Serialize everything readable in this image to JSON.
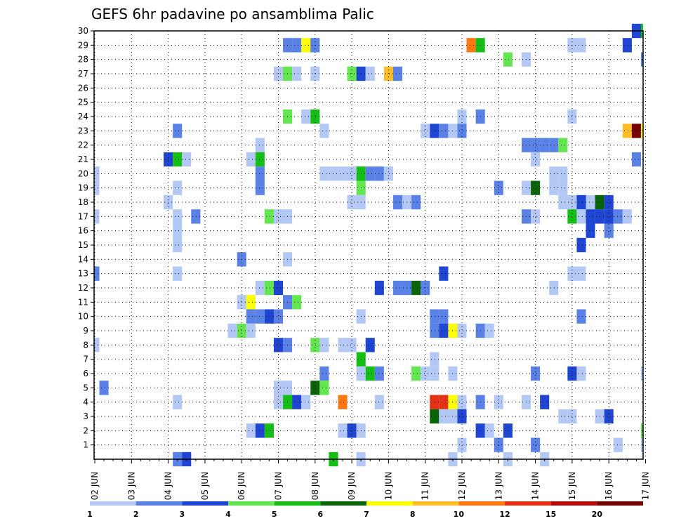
{
  "chart_data": {
    "type": "heatmap",
    "title": "GEFS 6hr padavine po ansamblima Palic",
    "x_tick_labels": [
      "02 JUN",
      "03 JUN",
      "04 JUN",
      "05 JUN",
      "06 JUN",
      "07 JUN",
      "08 JUN",
      "09 JUN",
      "10 JUN",
      "11 JUN",
      "12 JUN",
      "13 JUN",
      "14 JUN",
      "15 JUN",
      "16 JUN",
      "17 JUN"
    ],
    "y_tick_labels": [
      "1",
      "2",
      "3",
      "4",
      "5",
      "6",
      "7",
      "8",
      "9",
      "10",
      "11",
      "12",
      "13",
      "14",
      "15",
      "16",
      "17",
      "18",
      "19",
      "20",
      "21",
      "22",
      "23",
      "24",
      "25",
      "26",
      "27",
      "28",
      "29",
      "30"
    ],
    "colorbar": {
      "labels": [
        "1",
        "2",
        "3",
        "4",
        "5",
        "6",
        "7",
        "8",
        "10",
        "12",
        "15",
        "20"
      ],
      "colors": [
        "#b4c8f5",
        "#5a82e6",
        "#1e46d2",
        "#64e650",
        "#14be14",
        "#0a640a",
        "#ffff00",
        "#ffbe28",
        "#ff7814",
        "#e63214",
        "#b40a0a",
        "#780000"
      ]
    },
    "grid": "dotted",
    "cell_steps_per_day": 4,
    "cells": [
      [
        30,
        59,
        2
      ],
      [
        30,
        60,
        4
      ],
      [
        29,
        21,
        1
      ],
      [
        29,
        22,
        1
      ],
      [
        29,
        23,
        6
      ],
      [
        29,
        24,
        1
      ],
      [
        29,
        41,
        8
      ],
      [
        29,
        42,
        4
      ],
      [
        29,
        52,
        0
      ],
      [
        29,
        53,
        0
      ],
      [
        29,
        58,
        2
      ],
      [
        28,
        45,
        3
      ],
      [
        28,
        47,
        0
      ],
      [
        28,
        60,
        1
      ],
      [
        27,
        20,
        0
      ],
      [
        27,
        21,
        3
      ],
      [
        27,
        22,
        0
      ],
      [
        27,
        24,
        0
      ],
      [
        27,
        28,
        3
      ],
      [
        27,
        29,
        2
      ],
      [
        27,
        30,
        0
      ],
      [
        27,
        32,
        7
      ],
      [
        27,
        33,
        1
      ],
      [
        24,
        21,
        3
      ],
      [
        24,
        23,
        0
      ],
      [
        24,
        24,
        4
      ],
      [
        24,
        40,
        0
      ],
      [
        24,
        42,
        1
      ],
      [
        24,
        52,
        0
      ],
      [
        23,
        9,
        1
      ],
      [
        23,
        25,
        0
      ],
      [
        23,
        36,
        0
      ],
      [
        23,
        37,
        2
      ],
      [
        23,
        38,
        1
      ],
      [
        23,
        39,
        0
      ],
      [
        23,
        40,
        1
      ],
      [
        23,
        58,
        7
      ],
      [
        23,
        59,
        11
      ],
      [
        23,
        60,
        6
      ],
      [
        22,
        18,
        0
      ],
      [
        22,
        47,
        1
      ],
      [
        22,
        48,
        1
      ],
      [
        22,
        49,
        1
      ],
      [
        22,
        50,
        1
      ],
      [
        22,
        51,
        3
      ],
      [
        21,
        8,
        2
      ],
      [
        21,
        9,
        4
      ],
      [
        21,
        10,
        0
      ],
      [
        21,
        17,
        0
      ],
      [
        21,
        18,
        4
      ],
      [
        21,
        48,
        0
      ],
      [
        21,
        59,
        1
      ],
      [
        20,
        0,
        0
      ],
      [
        20,
        18,
        1
      ],
      [
        20,
        25,
        0
      ],
      [
        20,
        26,
        0
      ],
      [
        20,
        27,
        0
      ],
      [
        20,
        28,
        0
      ],
      [
        20,
        29,
        4
      ],
      [
        20,
        30,
        1
      ],
      [
        20,
        31,
        1
      ],
      [
        20,
        32,
        0
      ],
      [
        20,
        50,
        0
      ],
      [
        20,
        51,
        0
      ],
      [
        19,
        0,
        0
      ],
      [
        19,
        9,
        0
      ],
      [
        19,
        18,
        1
      ],
      [
        19,
        29,
        3
      ],
      [
        19,
        44,
        1
      ],
      [
        19,
        47,
        0
      ],
      [
        19,
        48,
        5
      ],
      [
        19,
        50,
        0
      ],
      [
        19,
        51,
        0
      ],
      [
        18,
        8,
        0
      ],
      [
        18,
        28,
        0
      ],
      [
        18,
        29,
        0
      ],
      [
        18,
        33,
        1
      ],
      [
        18,
        34,
        0
      ],
      [
        18,
        35,
        1
      ],
      [
        18,
        51,
        0
      ],
      [
        18,
        52,
        0
      ],
      [
        18,
        53,
        2
      ],
      [
        18,
        54,
        0
      ],
      [
        18,
        55,
        5
      ],
      [
        18,
        56,
        2
      ],
      [
        17,
        0,
        0
      ],
      [
        17,
        9,
        0
      ],
      [
        17,
        11,
        1
      ],
      [
        17,
        19,
        3
      ],
      [
        17,
        20,
        0
      ],
      [
        17,
        21,
        0
      ],
      [
        17,
        47,
        1
      ],
      [
        17,
        48,
        0
      ],
      [
        17,
        52,
        4
      ],
      [
        17,
        53,
        0
      ],
      [
        17,
        54,
        2
      ],
      [
        17,
        55,
        2
      ],
      [
        17,
        56,
        2
      ],
      [
        17,
        57,
        1
      ],
      [
        17,
        58,
        0
      ],
      [
        16,
        9,
        0
      ],
      [
        16,
        54,
        2
      ],
      [
        16,
        56,
        1
      ],
      [
        15,
        9,
        0
      ],
      [
        15,
        53,
        2
      ],
      [
        14,
        16,
        1
      ],
      [
        14,
        21,
        0
      ],
      [
        13,
        0,
        1
      ],
      [
        13,
        9,
        0
      ],
      [
        13,
        38,
        2
      ],
      [
        13,
        52,
        0
      ],
      [
        13,
        53,
        0
      ],
      [
        12,
        18,
        0
      ],
      [
        12,
        19,
        3
      ],
      [
        12,
        20,
        2
      ],
      [
        12,
        31,
        2
      ],
      [
        12,
        33,
        1
      ],
      [
        12,
        34,
        1
      ],
      [
        12,
        35,
        5
      ],
      [
        12,
        36,
        1
      ],
      [
        12,
        50,
        0
      ],
      [
        11,
        16,
        0
      ],
      [
        11,
        17,
        6
      ],
      [
        11,
        21,
        1
      ],
      [
        11,
        22,
        3
      ],
      [
        10,
        17,
        1
      ],
      [
        10,
        18,
        1
      ],
      [
        10,
        19,
        2
      ],
      [
        10,
        20,
        1
      ],
      [
        10,
        29,
        0
      ],
      [
        10,
        37,
        1
      ],
      [
        10,
        38,
        1
      ],
      [
        10,
        53,
        1
      ],
      [
        9,
        15,
        0
      ],
      [
        9,
        16,
        3
      ],
      [
        9,
        17,
        0
      ],
      [
        9,
        37,
        1
      ],
      [
        9,
        38,
        2
      ],
      [
        9,
        39,
        6
      ],
      [
        9,
        40,
        0
      ],
      [
        9,
        42,
        1
      ],
      [
        9,
        43,
        0
      ],
      [
        8,
        0,
        0
      ],
      [
        8,
        20,
        2
      ],
      [
        8,
        21,
        1
      ],
      [
        8,
        24,
        3
      ],
      [
        8,
        25,
        0
      ],
      [
        8,
        27,
        0
      ],
      [
        8,
        28,
        0
      ],
      [
        8,
        30,
        2
      ],
      [
        7,
        29,
        4
      ],
      [
        7,
        37,
        0
      ],
      [
        6,
        25,
        1
      ],
      [
        6,
        29,
        0
      ],
      [
        6,
        30,
        4
      ],
      [
        6,
        31,
        1
      ],
      [
        6,
        35,
        3
      ],
      [
        6,
        36,
        0
      ],
      [
        6,
        37,
        0
      ],
      [
        6,
        39,
        0
      ],
      [
        6,
        48,
        1
      ],
      [
        6,
        52,
        2
      ],
      [
        6,
        53,
        0
      ],
      [
        6,
        60,
        0
      ],
      [
        5,
        1,
        1
      ],
      [
        5,
        20,
        0
      ],
      [
        5,
        21,
        0
      ],
      [
        5,
        24,
        5
      ],
      [
        5,
        25,
        3
      ],
      [
        4,
        9,
        0
      ],
      [
        4,
        20,
        0
      ],
      [
        4,
        21,
        4
      ],
      [
        4,
        22,
        2
      ],
      [
        4,
        23,
        0
      ],
      [
        4,
        27,
        8
      ],
      [
        4,
        31,
        0
      ],
      [
        4,
        37,
        9
      ],
      [
        4,
        38,
        9
      ],
      [
        4,
        39,
        6
      ],
      [
        4,
        40,
        0
      ],
      [
        4,
        42,
        1
      ],
      [
        4,
        44,
        0
      ],
      [
        4,
        47,
        0
      ],
      [
        4,
        49,
        2
      ],
      [
        3,
        37,
        5
      ],
      [
        3,
        38,
        0
      ],
      [
        3,
        39,
        0
      ],
      [
        3,
        40,
        2
      ],
      [
        3,
        51,
        0
      ],
      [
        3,
        52,
        0
      ],
      [
        3,
        55,
        0
      ],
      [
        3,
        56,
        2
      ],
      [
        2,
        17,
        0
      ],
      [
        2,
        18,
        2
      ],
      [
        2,
        19,
        4
      ],
      [
        2,
        27,
        0
      ],
      [
        2,
        28,
        2
      ],
      [
        2,
        29,
        0
      ],
      [
        2,
        42,
        2
      ],
      [
        2,
        43,
        0
      ],
      [
        2,
        45,
        2
      ],
      [
        2,
        60,
        3
      ],
      [
        1,
        40,
        0
      ],
      [
        1,
        44,
        1
      ],
      [
        1,
        48,
        1
      ],
      [
        1,
        57,
        0
      ],
      [
        1,
        60,
        0
      ],
      [
        0,
        9,
        1
      ],
      [
        0,
        10,
        2
      ],
      [
        0,
        26,
        4
      ],
      [
        0,
        29,
        0
      ],
      [
        0,
        39,
        0
      ],
      [
        0,
        45,
        0
      ],
      [
        0,
        49,
        0
      ]
    ]
  }
}
